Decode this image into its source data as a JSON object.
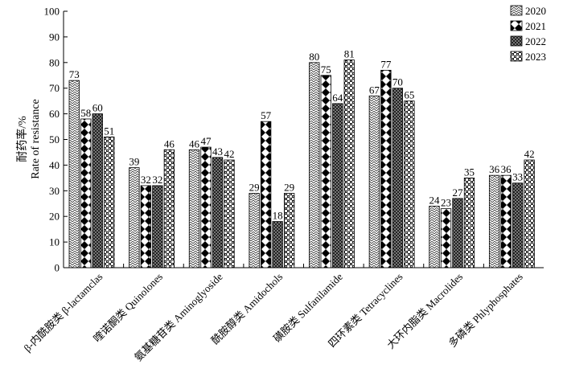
{
  "chart_data": {
    "type": "bar",
    "ylabel_cn": "耐药率/%",
    "ylabel_en": "Rate of resistance",
    "ylim": [
      0,
      100
    ],
    "yticks": [
      0,
      10,
      20,
      30,
      40,
      50,
      60,
      70,
      80,
      90,
      100
    ],
    "grid": false,
    "legend_position": "top-right",
    "categories": [
      "β-内酰胺类 β-lactamclas",
      "喹诺酮类 Quinolones",
      "氨基糖苷类 Aminoglyoside",
      "酰胺醇类 Amidochols",
      "磺胺类 Sulfanilamide",
      "四环素类 Tetracyclines",
      "大环内脂类 Macrolides",
      "多磷类 Phlyphosphates"
    ],
    "series": [
      {
        "name": "2020",
        "values": [
          73,
          39,
          46,
          29,
          80,
          67,
          24,
          36
        ],
        "pattern": "zigzag"
      },
      {
        "name": "2021",
        "values": [
          58,
          32,
          47,
          57,
          75,
          77,
          23,
          36
        ],
        "pattern": "diamond"
      },
      {
        "name": "2022",
        "values": [
          60,
          32,
          43,
          18,
          64,
          70,
          27,
          33
        ],
        "pattern": "grid"
      },
      {
        "name": "2023",
        "values": [
          51,
          46,
          42,
          29,
          81,
          65,
          35,
          42
        ],
        "pattern": "dots"
      }
    ]
  }
}
